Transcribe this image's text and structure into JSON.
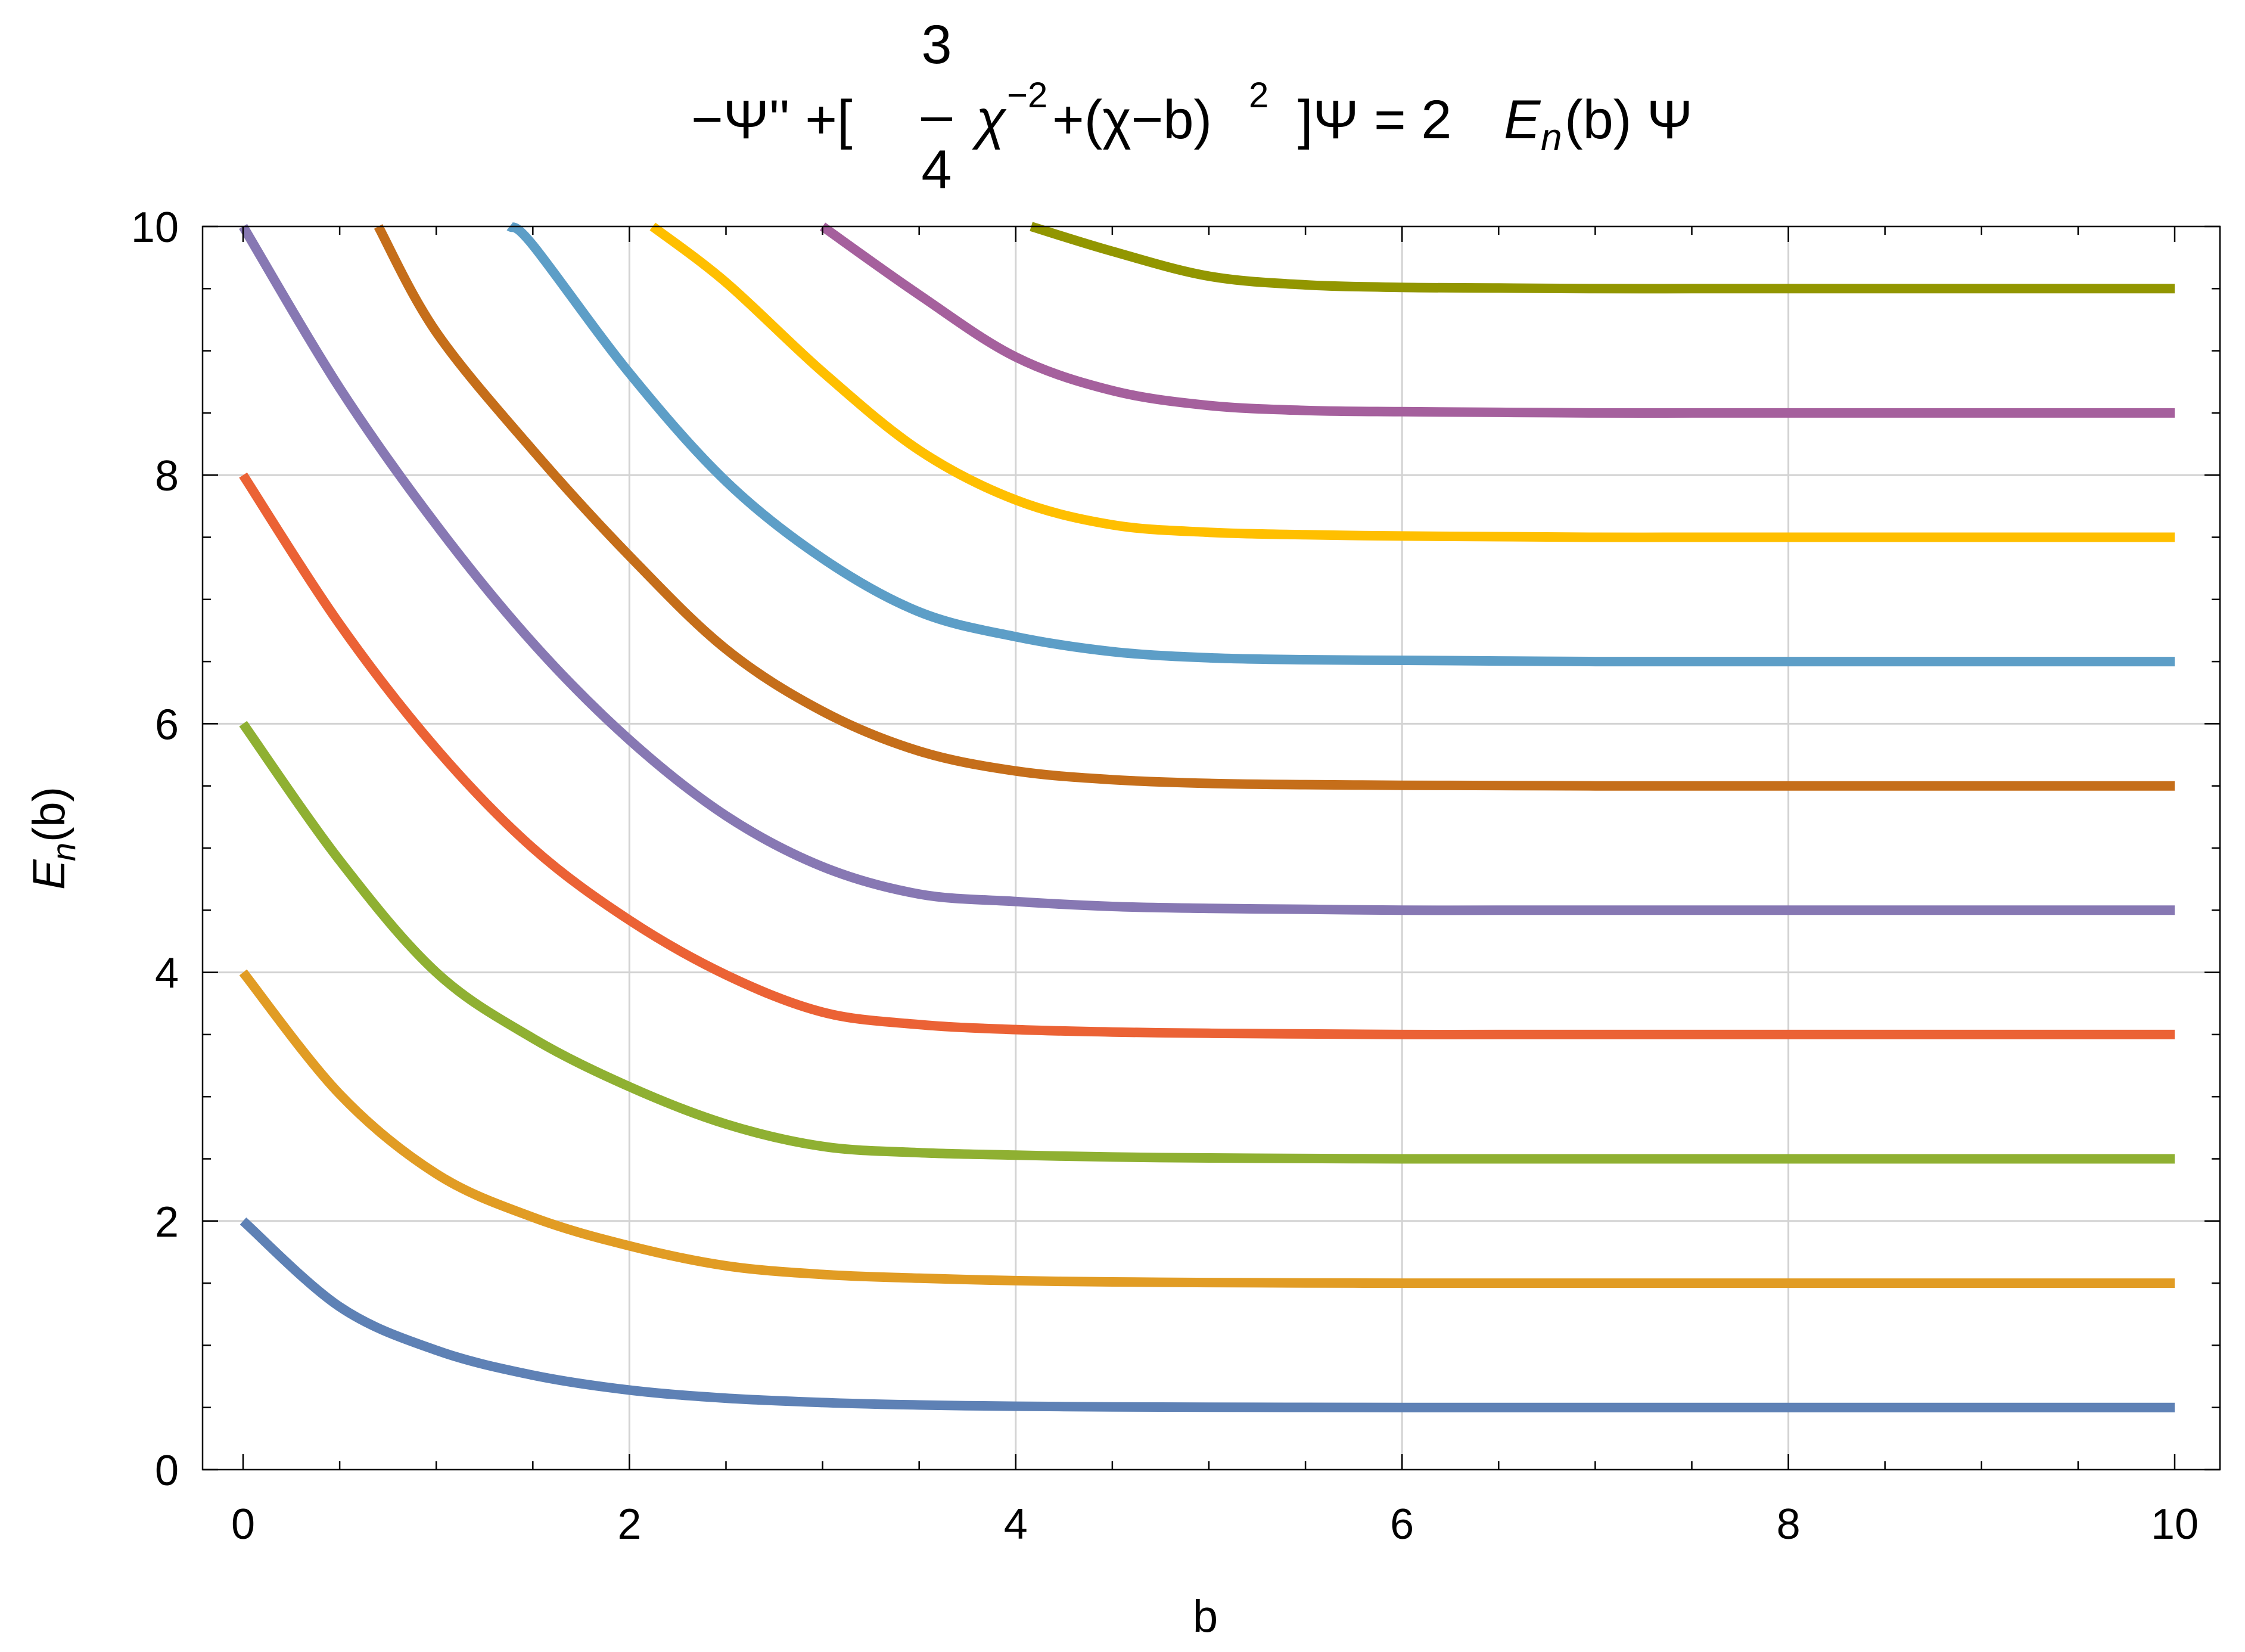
{
  "chart_data": {
    "type": "line",
    "title": {
      "prefix": "−Ψ'' +[",
      "fraction_numerator": "3",
      "fraction_denominator": "4",
      "chi": "χ",
      "exponent_1": "−2",
      "middle": "+(χ−b)",
      "exponent_2": "2",
      "after": "]Ψ = 2",
      "E": "E",
      "sub_n": "n",
      "suffix": "(b) Ψ"
    },
    "xlabel": "b",
    "ylabel": {
      "main": "E",
      "sub": "n",
      "rest": "(b)"
    },
    "xlim": [
      0,
      10
    ],
    "ylim": [
      0,
      10
    ],
    "xticks": [
      "0",
      "2",
      "4",
      "6",
      "8",
      "10"
    ],
    "yticks": [
      "0",
      "2",
      "4",
      "6",
      "8",
      "10"
    ],
    "grid": true,
    "x": [
      0,
      0.5,
      1,
      1.5,
      2,
      2.5,
      3,
      3.5,
      4,
      4.5,
      5,
      5.5,
      6,
      6.5,
      7,
      7.5,
      8,
      8.5,
      9,
      9.5,
      10
    ],
    "series": [
      {
        "color": "#5e81b5",
        "values": [
          2.0,
          1.31,
          0.96,
          0.76,
          0.64,
          0.575,
          0.54,
          0.52,
          0.51,
          0.505,
          0.502,
          0.501,
          0.5,
          0.5,
          0.5,
          0.5,
          0.5,
          0.5,
          0.5,
          0.5,
          0.5
        ]
      },
      {
        "color": "#e19c24",
        "values": [
          4.0,
          3.02,
          2.38,
          2.03,
          1.8,
          1.64,
          1.57,
          1.54,
          1.52,
          1.51,
          1.505,
          1.502,
          1.5,
          1.5,
          1.5,
          1.5,
          1.5,
          1.5,
          1.5,
          1.5,
          1.5
        ]
      },
      {
        "color": "#8fb032",
        "values": [
          6.0,
          4.9,
          4.0,
          3.47,
          3.08,
          2.78,
          2.6,
          2.55,
          2.53,
          2.515,
          2.507,
          2.503,
          2.5,
          2.5,
          2.5,
          2.5,
          2.5,
          2.5,
          2.5,
          2.5,
          2.5
        ]
      },
      {
        "color": "#eb6235",
        "values": [
          8.0,
          6.8,
          5.8,
          5.0,
          4.42,
          3.98,
          3.68,
          3.58,
          3.54,
          3.52,
          3.51,
          3.505,
          3.5,
          3.5,
          3.5,
          3.5,
          3.5,
          3.5,
          3.5,
          3.5,
          3.5
        ]
      },
      {
        "color": "#8778b3",
        "values": [
          10.0,
          8.7,
          7.6,
          6.65,
          5.87,
          5.26,
          4.85,
          4.63,
          4.57,
          4.53,
          4.515,
          4.507,
          4.5,
          4.5,
          4.5,
          4.5,
          4.5,
          4.5,
          4.5,
          4.5,
          4.5
        ]
      },
      {
        "color": "#c56e1a",
        "values": [
          null,
          10.0,
          9.15,
          8.2,
          7.35,
          6.6,
          6.1,
          5.78,
          5.62,
          5.55,
          5.52,
          5.51,
          5.505,
          5.503,
          5.5,
          5.5,
          5.5,
          5.5,
          5.5,
          5.5,
          5.5
        ]
      },
      {
        "color": "#5d9ec7",
        "values": [
          null,
          null,
          null,
          9.85,
          8.82,
          7.95,
          7.33,
          6.9,
          6.7,
          6.58,
          6.53,
          6.515,
          6.51,
          6.505,
          6.5,
          6.5,
          6.5,
          6.5,
          6.5,
          6.5,
          6.5
        ]
      },
      {
        "color": "#ffbf00",
        "values": [
          null,
          null,
          null,
          null,
          null,
          9.55,
          8.83,
          8.2,
          7.8,
          7.6,
          7.54,
          7.52,
          7.51,
          7.505,
          7.5,
          7.5,
          7.5,
          7.5,
          7.5,
          7.5,
          7.5
        ]
      },
      {
        "color": "#a5609d",
        "values": [
          null,
          null,
          null,
          null,
          null,
          null,
          10.0,
          9.45,
          8.95,
          8.68,
          8.56,
          8.52,
          8.51,
          8.505,
          8.5,
          8.5,
          8.5,
          8.5,
          8.5,
          8.5,
          8.5
        ]
      },
      {
        "color": "#929600",
        "values": [
          null,
          null,
          null,
          null,
          null,
          null,
          null,
          null,
          null,
          9.8,
          9.6,
          9.53,
          9.51,
          9.505,
          9.5,
          9.5,
          9.5,
          9.5,
          9.5,
          9.5,
          9.5
        ]
      }
    ],
    "series_start_x": [
      0,
      0,
      0,
      0,
      0,
      0.7,
      1.38,
      2.12,
      3.0,
      4.08
    ],
    "series_start_y": [
      2,
      4,
      6,
      8,
      10,
      10,
      10,
      10,
      10,
      10
    ]
  }
}
